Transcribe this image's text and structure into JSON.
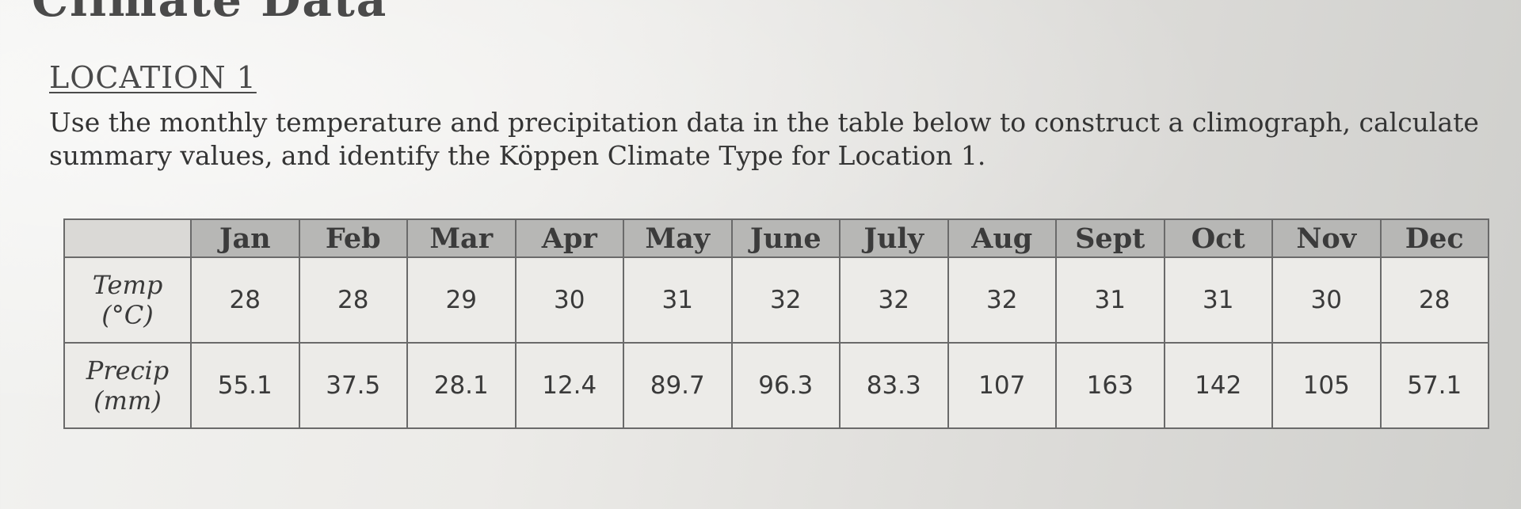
{
  "header_partial": "Climate Data",
  "heading": "LOCATION 1",
  "instructions": "Use the monthly temperature and precipitation data in the table below to construct a climograph, calculate summary values, and identify the Köppen Climate Type for Location 1.",
  "table": {
    "months": [
      "Jan",
      "Feb",
      "Mar",
      "Apr",
      "May",
      "June",
      "July",
      "Aug",
      "Sept",
      "Oct",
      "Nov",
      "Dec"
    ],
    "rows": [
      {
        "label_line1": "Temp",
        "label_line2": "(°C)",
        "values": [
          "28",
          "28",
          "29",
          "30",
          "31",
          "32",
          "32",
          "32",
          "31",
          "31",
          "30",
          "28"
        ]
      },
      {
        "label_line1": "Precip",
        "label_line2": "(mm)",
        "values": [
          "55.1",
          "37.5",
          "28.1",
          "12.4",
          "89.7",
          "96.3",
          "83.3",
          "107",
          "163",
          "142",
          "105",
          "57.1"
        ]
      }
    ]
  },
  "chart_data": {
    "type": "table",
    "columns": [
      "",
      "Jan",
      "Feb",
      "Mar",
      "Apr",
      "May",
      "June",
      "July",
      "Aug",
      "Sept",
      "Oct",
      "Nov",
      "Dec"
    ],
    "rows": [
      [
        "Temp (°C)",
        28,
        28,
        29,
        30,
        31,
        32,
        32,
        32,
        31,
        31,
        30,
        28
      ],
      [
        "Precip (mm)",
        55.1,
        37.5,
        28.1,
        12.4,
        89.7,
        96.3,
        83.3,
        107,
        163,
        142,
        105,
        57.1
      ]
    ]
  }
}
